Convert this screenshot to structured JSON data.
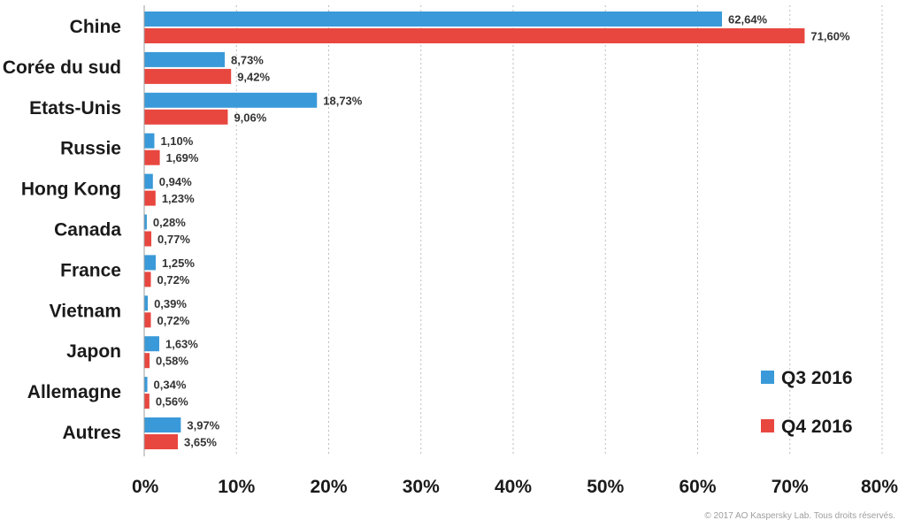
{
  "chart_data": {
    "type": "bar",
    "orientation": "horizontal",
    "title": "",
    "xlabel": "",
    "ylabel": "",
    "categories": [
      "Chine",
      "Corée du sud",
      "Etats-Unis",
      "Russie",
      "Hong Kong",
      "Canada",
      "France",
      "Vietnam",
      "Japon",
      "Allemagne",
      "Autres"
    ],
    "series": [
      {
        "name": "Q3 2016",
        "color": "#3a9ad9",
        "values": [
          62.64,
          8.73,
          18.73,
          1.1,
          0.94,
          0.28,
          1.25,
          0.39,
          1.63,
          0.34,
          3.97
        ],
        "labels": [
          "62,64%",
          "8,73%",
          "18,73%",
          "1,10%",
          "0,94%",
          "0,28%",
          "1,25%",
          "0,39%",
          "1,63%",
          "0,34%",
          "3,97%"
        ]
      },
      {
        "name": "Q4 2016",
        "color": "#e8473f",
        "values": [
          71.6,
          9.42,
          9.06,
          1.69,
          1.23,
          0.77,
          0.72,
          0.72,
          0.58,
          0.56,
          3.65
        ],
        "labels": [
          "71,60%",
          "9,42%",
          "9,06%",
          "1,69%",
          "1,23%",
          "0,77%",
          "0,72%",
          "0,72%",
          "0,58%",
          "0,56%",
          "3,65%"
        ]
      }
    ],
    "xlim": [
      0,
      80
    ],
    "ticks": [
      0,
      10,
      20,
      30,
      40,
      50,
      60,
      70,
      80
    ],
    "tick_labels": [
      "0%",
      "10%",
      "20%",
      "30%",
      "40%",
      "50%",
      "60%",
      "70%",
      "80%"
    ],
    "grid": true,
    "legend_position": "bottom-right"
  },
  "footer": {
    "copyright": "© 2017 AO Kaspersky Lab. Tous droits réservés."
  }
}
